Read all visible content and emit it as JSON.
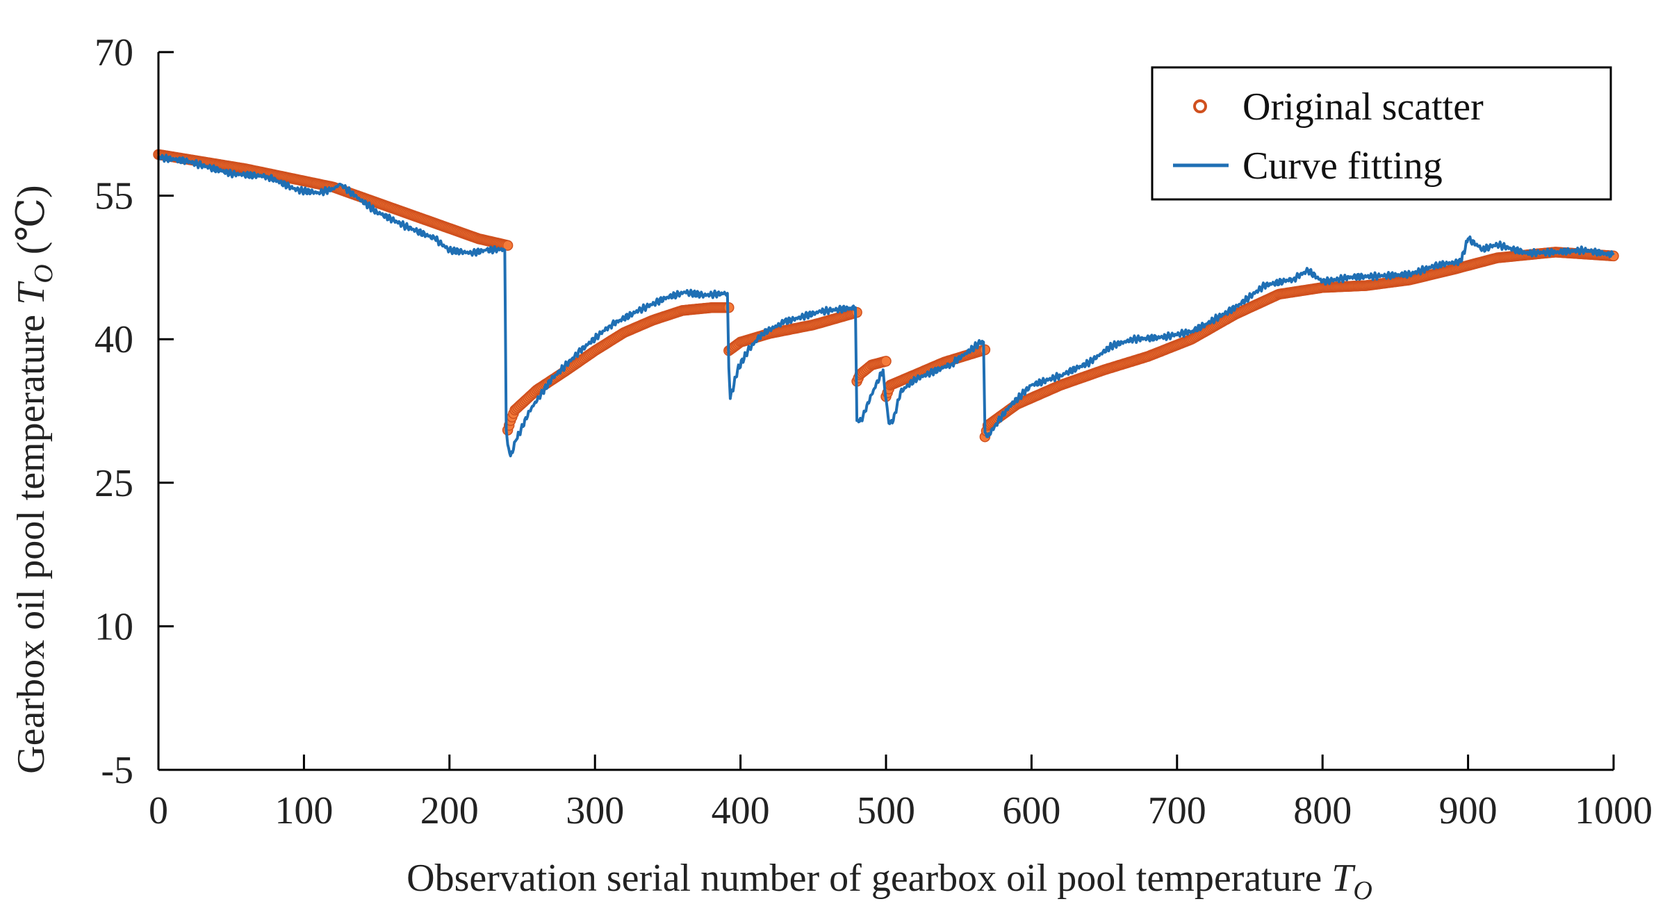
{
  "chart_data": {
    "type": "line",
    "title": "",
    "xlabel": {
      "text": "Observation serial number of gearbox oil pool temperature ",
      "var": "T",
      "sub": "O"
    },
    "ylabel": {
      "text": "Gearbox oil pool temperature ",
      "var": "T",
      "sub": "O",
      "unit": " (℃)"
    },
    "xlim": [
      0,
      1000
    ],
    "ylim": [
      -5,
      70
    ],
    "xticks": [
      0,
      100,
      200,
      300,
      400,
      500,
      600,
      700,
      800,
      900,
      1000
    ],
    "yticks": [
      -5,
      10,
      25,
      40,
      55,
      70
    ],
    "grid": false,
    "legend_position": "top-right",
    "series": [
      {
        "name": "Original scatter",
        "kind": "scatter",
        "color": "#f47b3a",
        "edge_color": "#d0501e",
        "segments": [
          [
            [
              0,
              59.3
            ],
            [
              60,
              57.8
            ],
            [
              120,
              55.9
            ],
            [
              170,
              53.2
            ],
            [
              220,
              50.5
            ],
            [
              240,
              49.8
            ]
          ],
          [
            [
              240,
              30.5
            ],
            [
              242,
              31.5
            ],
            [
              245,
              32.6
            ],
            [
              260,
              34.7
            ],
            [
              280,
              36.7
            ],
            [
              300,
              38.8
            ],
            [
              320,
              40.7
            ],
            [
              340,
              42.0
            ],
            [
              360,
              43.0
            ],
            [
              380,
              43.3
            ],
            [
              392,
              43.3
            ]
          ],
          [
            [
              392,
              38.8
            ],
            [
              400,
              39.7
            ],
            [
              420,
              40.6
            ],
            [
              450,
              41.5
            ],
            [
              480,
              42.8
            ]
          ],
          [
            [
              480,
              35.6
            ],
            [
              482,
              36.3
            ],
            [
              490,
              37.3
            ],
            [
              500,
              37.7
            ]
          ],
          [
            [
              500,
              34.0
            ],
            [
              503,
              35.2
            ],
            [
              520,
              36.3
            ],
            [
              540,
              37.6
            ],
            [
              568,
              38.9
            ]
          ],
          [
            [
              568,
              29.8
            ],
            [
              570,
              31.0
            ],
            [
              590,
              33.2
            ],
            [
              620,
              35.2
            ],
            [
              650,
              36.8
            ],
            [
              680,
              38.2
            ],
            [
              710,
              40.0
            ],
            [
              740,
              42.6
            ],
            [
              770,
              44.7
            ],
            [
              800,
              45.4
            ],
            [
              830,
              45.6
            ],
            [
              860,
              46.2
            ],
            [
              890,
              47.3
            ],
            [
              920,
              48.5
            ],
            [
              960,
              49.1
            ],
            [
              1000,
              48.7
            ]
          ]
        ]
      },
      {
        "name": "Curve fitting",
        "kind": "line",
        "color": "#1f6fb4",
        "points": [
          [
            0,
            59.0
          ],
          [
            20,
            58.6
          ],
          [
            50,
            57.3
          ],
          [
            75,
            57.0
          ],
          [
            95,
            55.6
          ],
          [
            110,
            55.3
          ],
          [
            120,
            55.7
          ],
          [
            125,
            56.2
          ],
          [
            135,
            55.0
          ],
          [
            150,
            53.3
          ],
          [
            170,
            51.8
          ],
          [
            190,
            50.5
          ],
          [
            200,
            49.3
          ],
          [
            215,
            49.0
          ],
          [
            225,
            49.3
          ],
          [
            237,
            49.4
          ],
          [
            238,
            49.3
          ],
          [
            239,
            30.5
          ],
          [
            240,
            29.0
          ],
          [
            242,
            27.8
          ],
          [
            246,
            29.5
          ],
          [
            255,
            32.5
          ],
          [
            270,
            35.8
          ],
          [
            290,
            38.8
          ],
          [
            310,
            41.4
          ],
          [
            330,
            43.0
          ],
          [
            350,
            44.4
          ],
          [
            362,
            44.9
          ],
          [
            375,
            44.6
          ],
          [
            391,
            44.8
          ],
          [
            392,
            37.0
          ],
          [
            393,
            33.8
          ],
          [
            398,
            36.8
          ],
          [
            405,
            38.8
          ],
          [
            415,
            40.6
          ],
          [
            430,
            41.8
          ],
          [
            455,
            42.9
          ],
          [
            479,
            43.3
          ],
          [
            480,
            31.5
          ],
          [
            483,
            31.5
          ],
          [
            490,
            34.2
          ],
          [
            498,
            36.8
          ],
          [
            499,
            35.0
          ],
          [
            502,
            31.2
          ],
          [
            505,
            31.5
          ],
          [
            510,
            34.5
          ],
          [
            520,
            35.8
          ],
          [
            545,
            37.4
          ],
          [
            566,
            39.8
          ],
          [
            567,
            39.7
          ],
          [
            568,
            30.3
          ],
          [
            570,
            29.8
          ],
          [
            575,
            31.0
          ],
          [
            585,
            33.0
          ],
          [
            600,
            35.2
          ],
          [
            620,
            36.2
          ],
          [
            640,
            37.6
          ],
          [
            655,
            39.3
          ],
          [
            670,
            40.0
          ],
          [
            690,
            40.2
          ],
          [
            710,
            40.8
          ],
          [
            720,
            41.6
          ],
          [
            740,
            43.3
          ],
          [
            760,
            45.6
          ],
          [
            780,
            46.3
          ],
          [
            790,
            47.2
          ],
          [
            800,
            46.0
          ],
          [
            820,
            46.5
          ],
          [
            840,
            46.6
          ],
          [
            860,
            46.8
          ],
          [
            880,
            47.8
          ],
          [
            895,
            48.1
          ],
          [
            900,
            50.5
          ],
          [
            910,
            49.4
          ],
          [
            920,
            49.9
          ],
          [
            940,
            49.0
          ],
          [
            960,
            49.1
          ],
          [
            980,
            49.3
          ],
          [
            1000,
            48.8
          ]
        ]
      }
    ]
  }
}
